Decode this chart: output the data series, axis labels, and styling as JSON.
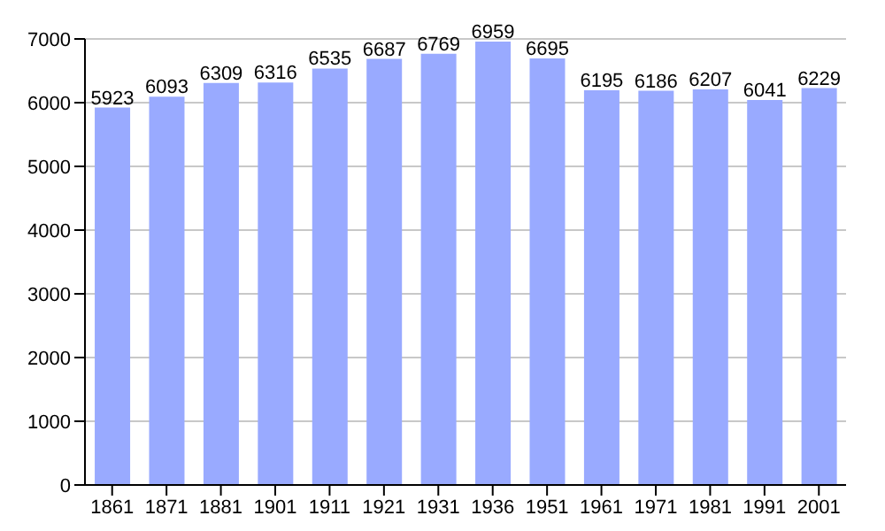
{
  "chart_data": {
    "type": "bar",
    "categories": [
      "1861",
      "1871",
      "1881",
      "1901",
      "1911",
      "1921",
      "1931",
      "1936",
      "1951",
      "1961",
      "1971",
      "1981",
      "1991",
      "2001"
    ],
    "values": [
      5923,
      6093,
      6309,
      6316,
      6535,
      6687,
      6769,
      6959,
      6695,
      6195,
      6186,
      6207,
      6041,
      6229
    ],
    "color": "#99aaff",
    "ylim": [
      0,
      7000
    ],
    "yticks": [
      0,
      1000,
      2000,
      3000,
      4000,
      5000,
      6000,
      7000
    ],
    "grid": "y",
    "data_labels": true
  }
}
